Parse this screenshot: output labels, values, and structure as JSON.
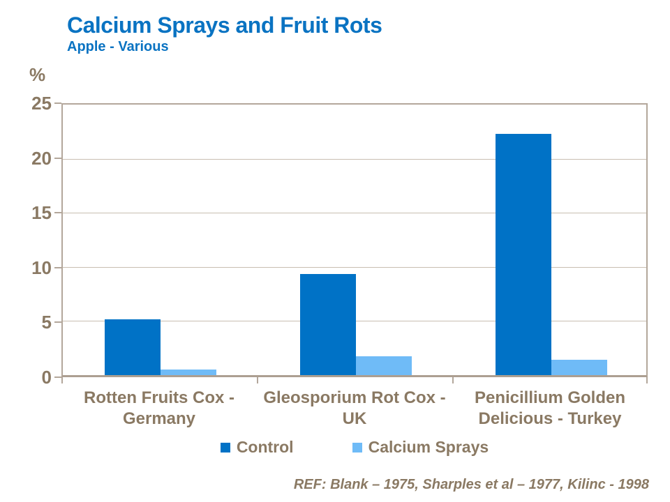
{
  "header": {
    "title": "Calcium Sprays and Fruit Rots",
    "subtitle": "Apple - Various"
  },
  "footer": {
    "reference": "REF: Blank – 1975, Sharples et al – 1977, Kilinc - 1998"
  },
  "colors": {
    "title_blue": "#0A73C2",
    "control_bar": "#0072C6",
    "calcium_bar": "#6FBBF7",
    "axis_text": "#8A7963",
    "plot_border": "#B3A79B",
    "gridline": "#C8BEB1"
  },
  "chart_data": {
    "type": "bar",
    "title": "Calcium Sprays and Fruit Rots",
    "subtitle": "Apple - Various",
    "xlabel": "",
    "ylabel": "%",
    "ylim": [
      0,
      25
    ],
    "yticks": [
      0,
      5,
      10,
      15,
      20,
      25
    ],
    "grid": true,
    "legend_position": "bottom",
    "categories": [
      "Rotten Fruits Cox - Germany",
      "Gleosporium Rot Cox - UK",
      "Penicillium Golden Delicious - Turkey"
    ],
    "category_lines": [
      [
        "Rotten Fruits Cox -",
        "Germany"
      ],
      [
        "Gleosporium Rot Cox -",
        "UK"
      ],
      [
        "Penicillium Golden",
        "Delicious - Turkey"
      ]
    ],
    "series": [
      {
        "name": "Control",
        "color": "#0072C6",
        "values": [
          5.1,
          9.2,
          22
        ]
      },
      {
        "name": "Calcium Sprays",
        "color": "#6FBBF7",
        "values": [
          0.5,
          1.7,
          1.4
        ]
      }
    ]
  }
}
